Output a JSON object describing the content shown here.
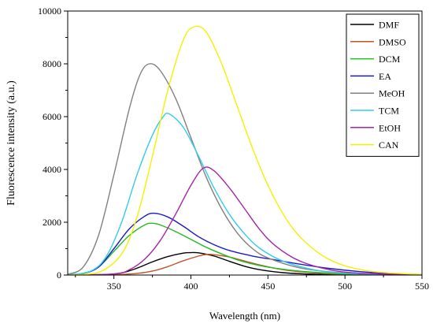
{
  "chart_data": {
    "type": "line",
    "title": "",
    "xlabel": "Wavelength (nm)",
    "ylabel": "Fluorescence intensity (a.u.)",
    "xlim": [
      320,
      550
    ],
    "ylim": [
      0,
      10000
    ],
    "x_ticks": [
      350,
      400,
      450,
      500,
      550
    ],
    "y_ticks": [
      0,
      2000,
      4000,
      6000,
      8000,
      10000
    ],
    "grid": false,
    "legend_position": "top-right",
    "series": [
      {
        "name": "DMF",
        "color": "#000000",
        "points": [
          [
            320,
            0
          ],
          [
            335,
            4
          ],
          [
            345,
            20
          ],
          [
            355,
            80
          ],
          [
            365,
            260
          ],
          [
            375,
            500
          ],
          [
            385,
            700
          ],
          [
            395,
            830
          ],
          [
            400,
            850
          ],
          [
            405,
            840
          ],
          [
            415,
            720
          ],
          [
            425,
            520
          ],
          [
            435,
            330
          ],
          [
            445,
            200
          ],
          [
            460,
            90
          ],
          [
            480,
            30
          ],
          [
            500,
            10
          ],
          [
            550,
            0
          ]
        ]
      },
      {
        "name": "DMSO",
        "color": "#c0552a",
        "points": [
          [
            320,
            0
          ],
          [
            345,
            4
          ],
          [
            355,
            20
          ],
          [
            365,
            60
          ],
          [
            375,
            150
          ],
          [
            385,
            320
          ],
          [
            395,
            540
          ],
          [
            405,
            720
          ],
          [
            410,
            780
          ],
          [
            415,
            770
          ],
          [
            425,
            680
          ],
          [
            435,
            530
          ],
          [
            445,
            380
          ],
          [
            460,
            200
          ],
          [
            480,
            80
          ],
          [
            500,
            30
          ],
          [
            550,
            0
          ]
        ]
      },
      {
        "name": "DCM",
        "color": "#22bb22",
        "points": [
          [
            320,
            5
          ],
          [
            330,
            60
          ],
          [
            340,
            300
          ],
          [
            350,
            900
          ],
          [
            360,
            1500
          ],
          [
            370,
            1900
          ],
          [
            375,
            1960
          ],
          [
            380,
            1900
          ],
          [
            390,
            1650
          ],
          [
            400,
            1350
          ],
          [
            410,
            1050
          ],
          [
            420,
            800
          ],
          [
            430,
            580
          ],
          [
            440,
            420
          ],
          [
            450,
            300
          ],
          [
            470,
            150
          ],
          [
            490,
            70
          ],
          [
            510,
            30
          ],
          [
            550,
            5
          ]
        ]
      },
      {
        "name": "EA",
        "color": "#1a1acc",
        "points": [
          [
            320,
            5
          ],
          [
            330,
            60
          ],
          [
            340,
            300
          ],
          [
            350,
            1000
          ],
          [
            360,
            1750
          ],
          [
            370,
            2230
          ],
          [
            376,
            2340
          ],
          [
            385,
            2200
          ],
          [
            395,
            1850
          ],
          [
            405,
            1450
          ],
          [
            415,
            1150
          ],
          [
            425,
            930
          ],
          [
            440,
            720
          ],
          [
            450,
            620
          ],
          [
            470,
            420
          ],
          [
            490,
            250
          ],
          [
            510,
            130
          ],
          [
            530,
            60
          ],
          [
            550,
            20
          ]
        ]
      },
      {
        "name": "MeOH",
        "color": "#808080",
        "points": [
          [
            320,
            30
          ],
          [
            330,
            300
          ],
          [
            340,
            1500
          ],
          [
            350,
            3800
          ],
          [
            360,
            6300
          ],
          [
            367,
            7600
          ],
          [
            373,
            8000
          ],
          [
            380,
            7750
          ],
          [
            390,
            6700
          ],
          [
            400,
            5200
          ],
          [
            410,
            3700
          ],
          [
            420,
            2500
          ],
          [
            430,
            1600
          ],
          [
            440,
            1000
          ],
          [
            450,
            650
          ],
          [
            470,
            280
          ],
          [
            490,
            120
          ],
          [
            510,
            50
          ],
          [
            550,
            10
          ]
        ]
      },
      {
        "name": "TCM",
        "color": "#33ccee",
        "points": [
          [
            320,
            10
          ],
          [
            335,
            150
          ],
          [
            345,
            700
          ],
          [
            355,
            2000
          ],
          [
            365,
            3800
          ],
          [
            375,
            5300
          ],
          [
            382,
            6000
          ],
          [
            386,
            6100
          ],
          [
            395,
            5600
          ],
          [
            405,
            4500
          ],
          [
            415,
            3300
          ],
          [
            425,
            2300
          ],
          [
            435,
            1550
          ],
          [
            445,
            1000
          ],
          [
            460,
            520
          ],
          [
            480,
            200
          ],
          [
            500,
            70
          ],
          [
            550,
            5
          ]
        ]
      },
      {
        "name": "EtOH",
        "color": "#aa22aa",
        "points": [
          [
            320,
            0
          ],
          [
            350,
            40
          ],
          [
            360,
            200
          ],
          [
            370,
            600
          ],
          [
            380,
            1300
          ],
          [
            390,
            2300
          ],
          [
            400,
            3400
          ],
          [
            408,
            4050
          ],
          [
            415,
            3950
          ],
          [
            425,
            3300
          ],
          [
            435,
            2500
          ],
          [
            445,
            1700
          ],
          [
            455,
            1100
          ],
          [
            470,
            550
          ],
          [
            490,
            200
          ],
          [
            510,
            70
          ],
          [
            550,
            5
          ]
        ]
      },
      {
        "name": "CAN",
        "color": "#f2f200",
        "points": [
          [
            320,
            0
          ],
          [
            340,
            100
          ],
          [
            355,
            800
          ],
          [
            365,
            2200
          ],
          [
            375,
            4500
          ],
          [
            385,
            7000
          ],
          [
            395,
            8900
          ],
          [
            402,
            9400
          ],
          [
            410,
            9200
          ],
          [
            420,
            8000
          ],
          [
            430,
            6400
          ],
          [
            440,
            4800
          ],
          [
            450,
            3400
          ],
          [
            460,
            2300
          ],
          [
            470,
            1500
          ],
          [
            485,
            750
          ],
          [
            500,
            350
          ],
          [
            520,
            120
          ],
          [
            550,
            20
          ]
        ]
      }
    ]
  }
}
